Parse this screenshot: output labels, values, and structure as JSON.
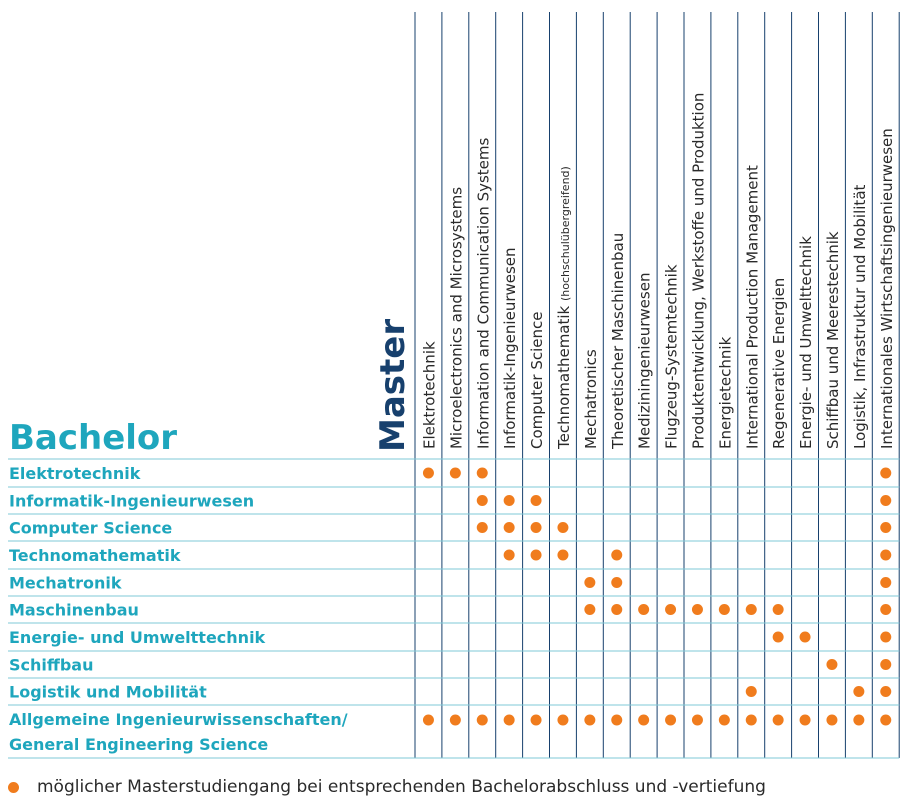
{
  "labels": {
    "master": "Master",
    "bachelor": "Bachelor"
  },
  "masters": [
    "Elektrotechnik",
    "Microelectronics and Microsystems",
    "Information and Communication Systems",
    "Informatik-Ingenieurwesen",
    "Computer Science",
    "Technomathematik (hochschulübergreifend)",
    "Mechatronics",
    "Theoretischer Maschinenbau",
    "Mediziningenieurwesen",
    "Flugzeug-Systemtechnik",
    "Produktentwicklung, Werkstoffe und Produktion",
    "Energietechnik",
    "International Production Management",
    "Regenerative Energien",
    "Energie- und Umwelttechnik",
    "Schiffbau und Meerestechnik",
    "Logistik, Infrastruktur und Mobilität",
    "Internationales Wirtschaftsingenieurwesen"
  ],
  "bachelors": [
    {
      "name": [
        "Elektrotechnik"
      ],
      "dots": [
        0,
        1,
        2,
        17
      ]
    },
    {
      "name": [
        "Informatik-Ingenieurwesen"
      ],
      "dots": [
        2,
        3,
        4,
        17
      ]
    },
    {
      "name": [
        "Computer Science"
      ],
      "dots": [
        2,
        3,
        4,
        5,
        17
      ]
    },
    {
      "name": [
        "Technomathematik"
      ],
      "dots": [
        3,
        4,
        5,
        7,
        17
      ]
    },
    {
      "name": [
        "Mechatronik"
      ],
      "dots": [
        6,
        7,
        17
      ]
    },
    {
      "name": [
        "Maschinenbau"
      ],
      "dots": [
        6,
        7,
        8,
        9,
        10,
        11,
        12,
        13,
        17
      ]
    },
    {
      "name": [
        "Energie- und Umwelttechnik"
      ],
      "dots": [
        13,
        14,
        17
      ]
    },
    {
      "name": [
        "Schiffbau"
      ],
      "dots": [
        15,
        17
      ]
    },
    {
      "name": [
        "Logistik und Mobilität"
      ],
      "dots": [
        12,
        16,
        17
      ]
    },
    {
      "name": [
        "Allgemeine Ingenieurwissenschaften/",
        "General Engineering Science"
      ],
      "dots": [
        0,
        1,
        2,
        3,
        4,
        5,
        6,
        7,
        8,
        9,
        10,
        11,
        12,
        13,
        14,
        15,
        16,
        17
      ]
    }
  ],
  "legend": "möglicher Masterstudiengang bei entsprechenden Bachelorabschluss und -vertiefung",
  "colors": {
    "teal": "#1ea6bd",
    "navy": "#17406d",
    "dot": "#f07c1d",
    "text": "#2a2a2a",
    "rule": "#7fcad7",
    "dark_rule": "#17406d"
  }
}
